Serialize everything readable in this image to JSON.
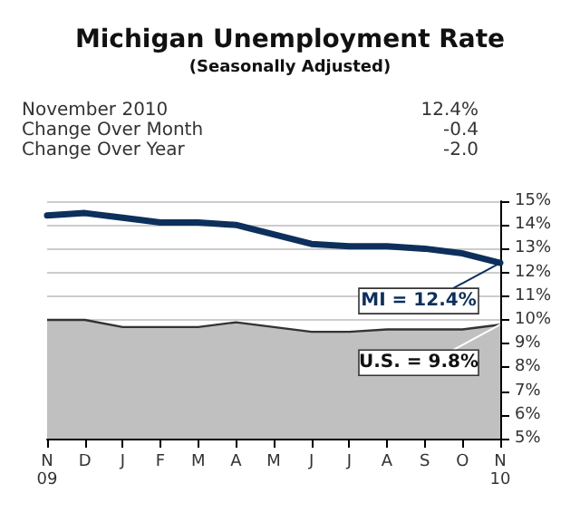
{
  "chart_data": {
    "type": "line",
    "title": "Michigan Unemployment Rate",
    "subtitle": "(Seasonally Adjusted)",
    "categories": [
      "N\n09",
      "D",
      "J",
      "F",
      "M",
      "A",
      "M",
      "J",
      "J",
      "A",
      "S",
      "O",
      "N\n10"
    ],
    "series": [
      {
        "color": "#0d2f5c",
        "values": [
          14.4,
          14.5,
          14.3,
          14.1,
          14.1,
          14.0,
          13.6,
          13.2,
          13.1,
          13.1,
          13.0,
          12.8,
          12.4
        ]
      },
      {
        "type": "area",
        "color": "#c0c0c0",
        "values": [
          10.0,
          10.0,
          9.7,
          9.7,
          9.7,
          9.9,
          9.7,
          9.5,
          9.5,
          9.6,
          9.6,
          9.6,
          9.8
        ]
      }
    ],
    "ylim": [
      5,
      15
    ],
    "yticks": [
      {
        "value": 5,
        "label": "5%"
      },
      {
        "value": 6,
        "label": "6%"
      },
      {
        "value": 7,
        "label": "7%"
      },
      {
        "value": 8,
        "label": "8%"
      },
      {
        "value": 9,
        "label": "9%"
      },
      {
        "value": 10,
        "label": "10%"
      },
      {
        "value": 11,
        "label": "11%"
      },
      {
        "value": 12,
        "label": "12%"
      },
      {
        "value": 13,
        "label": "13%"
      },
      {
        "value": 14,
        "label": "14%"
      },
      {
        "value": 15,
        "label": "15%"
      }
    ],
    "grid": "y",
    "marker": "none",
    "annotations": [
      "November 2010",
      "12.4%",
      "Change Over Month",
      "-0.4",
      "Change Over Year",
      "-2.0",
      {
        "text": "MI = 12.4%",
        "x": "N\n10",
        "y": 12.4
      },
      {
        "text": "U.S. = 9.8%",
        "x": "N\n10",
        "y": 9.8
      }
    ]
  }
}
